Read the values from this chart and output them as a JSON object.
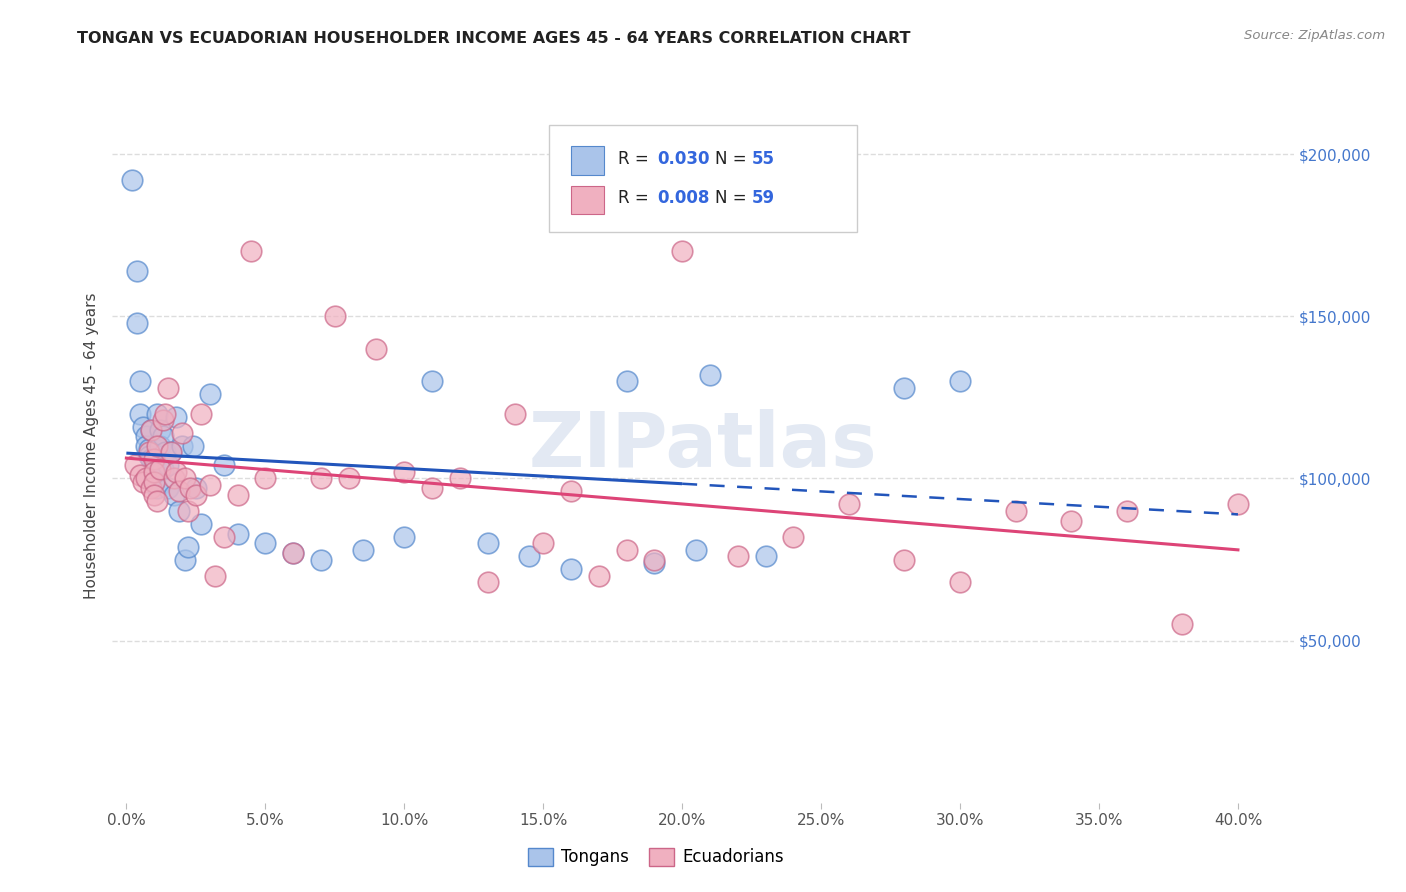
{
  "title": "TONGAN VS ECUADORIAN HOUSEHOLDER INCOME AGES 45 - 64 YEARS CORRELATION CHART",
  "source": "Source: ZipAtlas.com",
  "ylabel": "Householder Income Ages 45 - 64 years",
  "ytick_labels": [
    "",
    "$50,000",
    "$100,000",
    "$150,000",
    "$200,000"
  ],
  "ytick_vals": [
    0,
    50000,
    100000,
    150000,
    200000
  ],
  "xtick_vals": [
    0,
    5,
    10,
    15,
    20,
    25,
    30,
    35,
    40
  ],
  "xtick_labels": [
    "0.0%",
    "5.0%",
    "10.0%",
    "15.0%",
    "20.0%",
    "25.0%",
    "30.0%",
    "35.0%",
    "40.0%"
  ],
  "xmin": -0.5,
  "xmax": 42.0,
  "ymin": 0,
  "ymax": 220000,
  "tongan_color": "#aac4ea",
  "tongan_edge_color": "#5588cc",
  "ecuadorian_color": "#f0b0c0",
  "ecuadorian_edge_color": "#cc6688",
  "blue_line_color": "#2255bb",
  "pink_line_color": "#dd4477",
  "watermark_color": "#ccd8ea",
  "background_color": "#ffffff",
  "grid_color": "#dddddd",
  "legend_r_tongan": "R = 0.030",
  "legend_n_tongan": "N = 55",
  "legend_r_ecuadorian": "R = 0.008",
  "legend_n_ecuadorian": "N = 59",
  "tongan_x": [
    0.2,
    0.4,
    0.4,
    0.5,
    0.5,
    0.6,
    0.7,
    0.7,
    0.8,
    0.8,
    0.9,
    0.9,
    1.0,
    1.0,
    1.0,
    1.0,
    1.0,
    1.1,
    1.1,
    1.2,
    1.2,
    1.3,
    1.3,
    1.4,
    1.5,
    1.5,
    1.6,
    1.7,
    1.8,
    1.9,
    2.0,
    2.1,
    2.2,
    2.4,
    2.5,
    2.7,
    3.0,
    3.5,
    4.0,
    5.0,
    6.0,
    7.0,
    8.5,
    10.0,
    11.0,
    13.0,
    14.5,
    16.0,
    18.0,
    19.0,
    20.5,
    21.0,
    23.0,
    28.0,
    30.0
  ],
  "tongan_y": [
    192000,
    164000,
    148000,
    130000,
    120000,
    116000,
    113000,
    110000,
    109000,
    107000,
    106000,
    115000,
    105000,
    103000,
    101000,
    100000,
    99000,
    120000,
    97000,
    115000,
    110000,
    113000,
    103000,
    108000,
    104000,
    97000,
    108000,
    95000,
    119000,
    90000,
    110000,
    75000,
    79000,
    110000,
    97000,
    86000,
    126000,
    104000,
    83000,
    80000,
    77000,
    75000,
    78000,
    82000,
    130000,
    80000,
    76000,
    72000,
    130000,
    74000,
    78000,
    132000,
    76000,
    128000,
    130000
  ],
  "ecuadorian_x": [
    0.3,
    0.5,
    0.6,
    0.7,
    0.8,
    0.9,
    0.9,
    1.0,
    1.0,
    1.0,
    1.0,
    1.1,
    1.1,
    1.2,
    1.3,
    1.4,
    1.5,
    1.6,
    1.7,
    1.8,
    1.9,
    2.0,
    2.1,
    2.2,
    2.3,
    2.5,
    2.7,
    3.0,
    3.2,
    3.5,
    4.0,
    4.5,
    5.0,
    6.0,
    7.0,
    7.5,
    8.0,
    9.0,
    10.0,
    11.0,
    12.0,
    13.0,
    14.0,
    15.0,
    16.0,
    17.0,
    18.0,
    19.0,
    20.0,
    22.0,
    24.0,
    26.0,
    28.0,
    30.0,
    32.0,
    34.0,
    36.0,
    38.0,
    40.0
  ],
  "ecuadorian_y": [
    104000,
    101000,
    99000,
    100000,
    108000,
    115000,
    97000,
    106000,
    102000,
    99000,
    95000,
    110000,
    93000,
    103000,
    118000,
    120000,
    128000,
    108000,
    100000,
    102000,
    96000,
    114000,
    100000,
    90000,
    97000,
    95000,
    120000,
    98000,
    70000,
    82000,
    95000,
    170000,
    100000,
    77000,
    100000,
    150000,
    100000,
    140000,
    102000,
    97000,
    100000,
    68000,
    120000,
    80000,
    96000,
    70000,
    78000,
    75000,
    170000,
    76000,
    82000,
    92000,
    75000,
    68000,
    90000,
    87000,
    90000,
    55000,
    92000
  ]
}
